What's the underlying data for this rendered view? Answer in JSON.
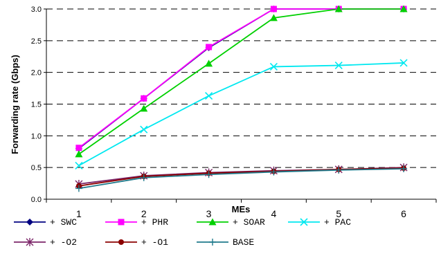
{
  "chart_data": {
    "type": "line",
    "xlabel": "MEs",
    "ylabel": "Forwarding rate (Gbps)",
    "x": [
      1,
      2,
      3,
      4,
      5,
      6
    ],
    "ylim": [
      0,
      3.0
    ],
    "yticks": [
      "0.0",
      "0.5",
      "1.0",
      "1.5",
      "2.0",
      "2.5",
      "3.0"
    ],
    "grid": "horizontal dashed",
    "legend_position": "bottom",
    "series": [
      {
        "name": "+ SWC",
        "values": [
          0.8,
          1.59,
          2.39,
          3.0,
          3.0,
          3.0
        ],
        "color": "#000080",
        "marker": "diamond"
      },
      {
        "name": "+ PHR",
        "values": [
          0.81,
          1.59,
          2.4,
          3.0,
          3.0,
          3.0
        ],
        "color": "#FF00FF",
        "marker": "square"
      },
      {
        "name": "+ SOAR",
        "values": [
          0.71,
          1.43,
          2.14,
          2.86,
          3.0,
          3.0
        ],
        "color": "#00D000",
        "marker": "triangle"
      },
      {
        "name": "+ PAC",
        "values": [
          0.53,
          1.1,
          1.63,
          2.09,
          2.11,
          2.15
        ],
        "color": "#00E8F0",
        "marker": "x"
      },
      {
        "name": "+ -O2",
        "values": [
          0.24,
          0.37,
          0.42,
          0.45,
          0.47,
          0.5
        ],
        "color": "#7B2468",
        "marker": "star"
      },
      {
        "name": "+ -O1",
        "values": [
          0.21,
          0.36,
          0.41,
          0.44,
          0.47,
          0.49
        ],
        "color": "#8B0000",
        "marker": "circle"
      },
      {
        "name": "BASE",
        "values": [
          0.17,
          0.34,
          0.39,
          0.43,
          0.46,
          0.48
        ],
        "color": "#1F7A8C",
        "marker": "plus"
      }
    ]
  }
}
